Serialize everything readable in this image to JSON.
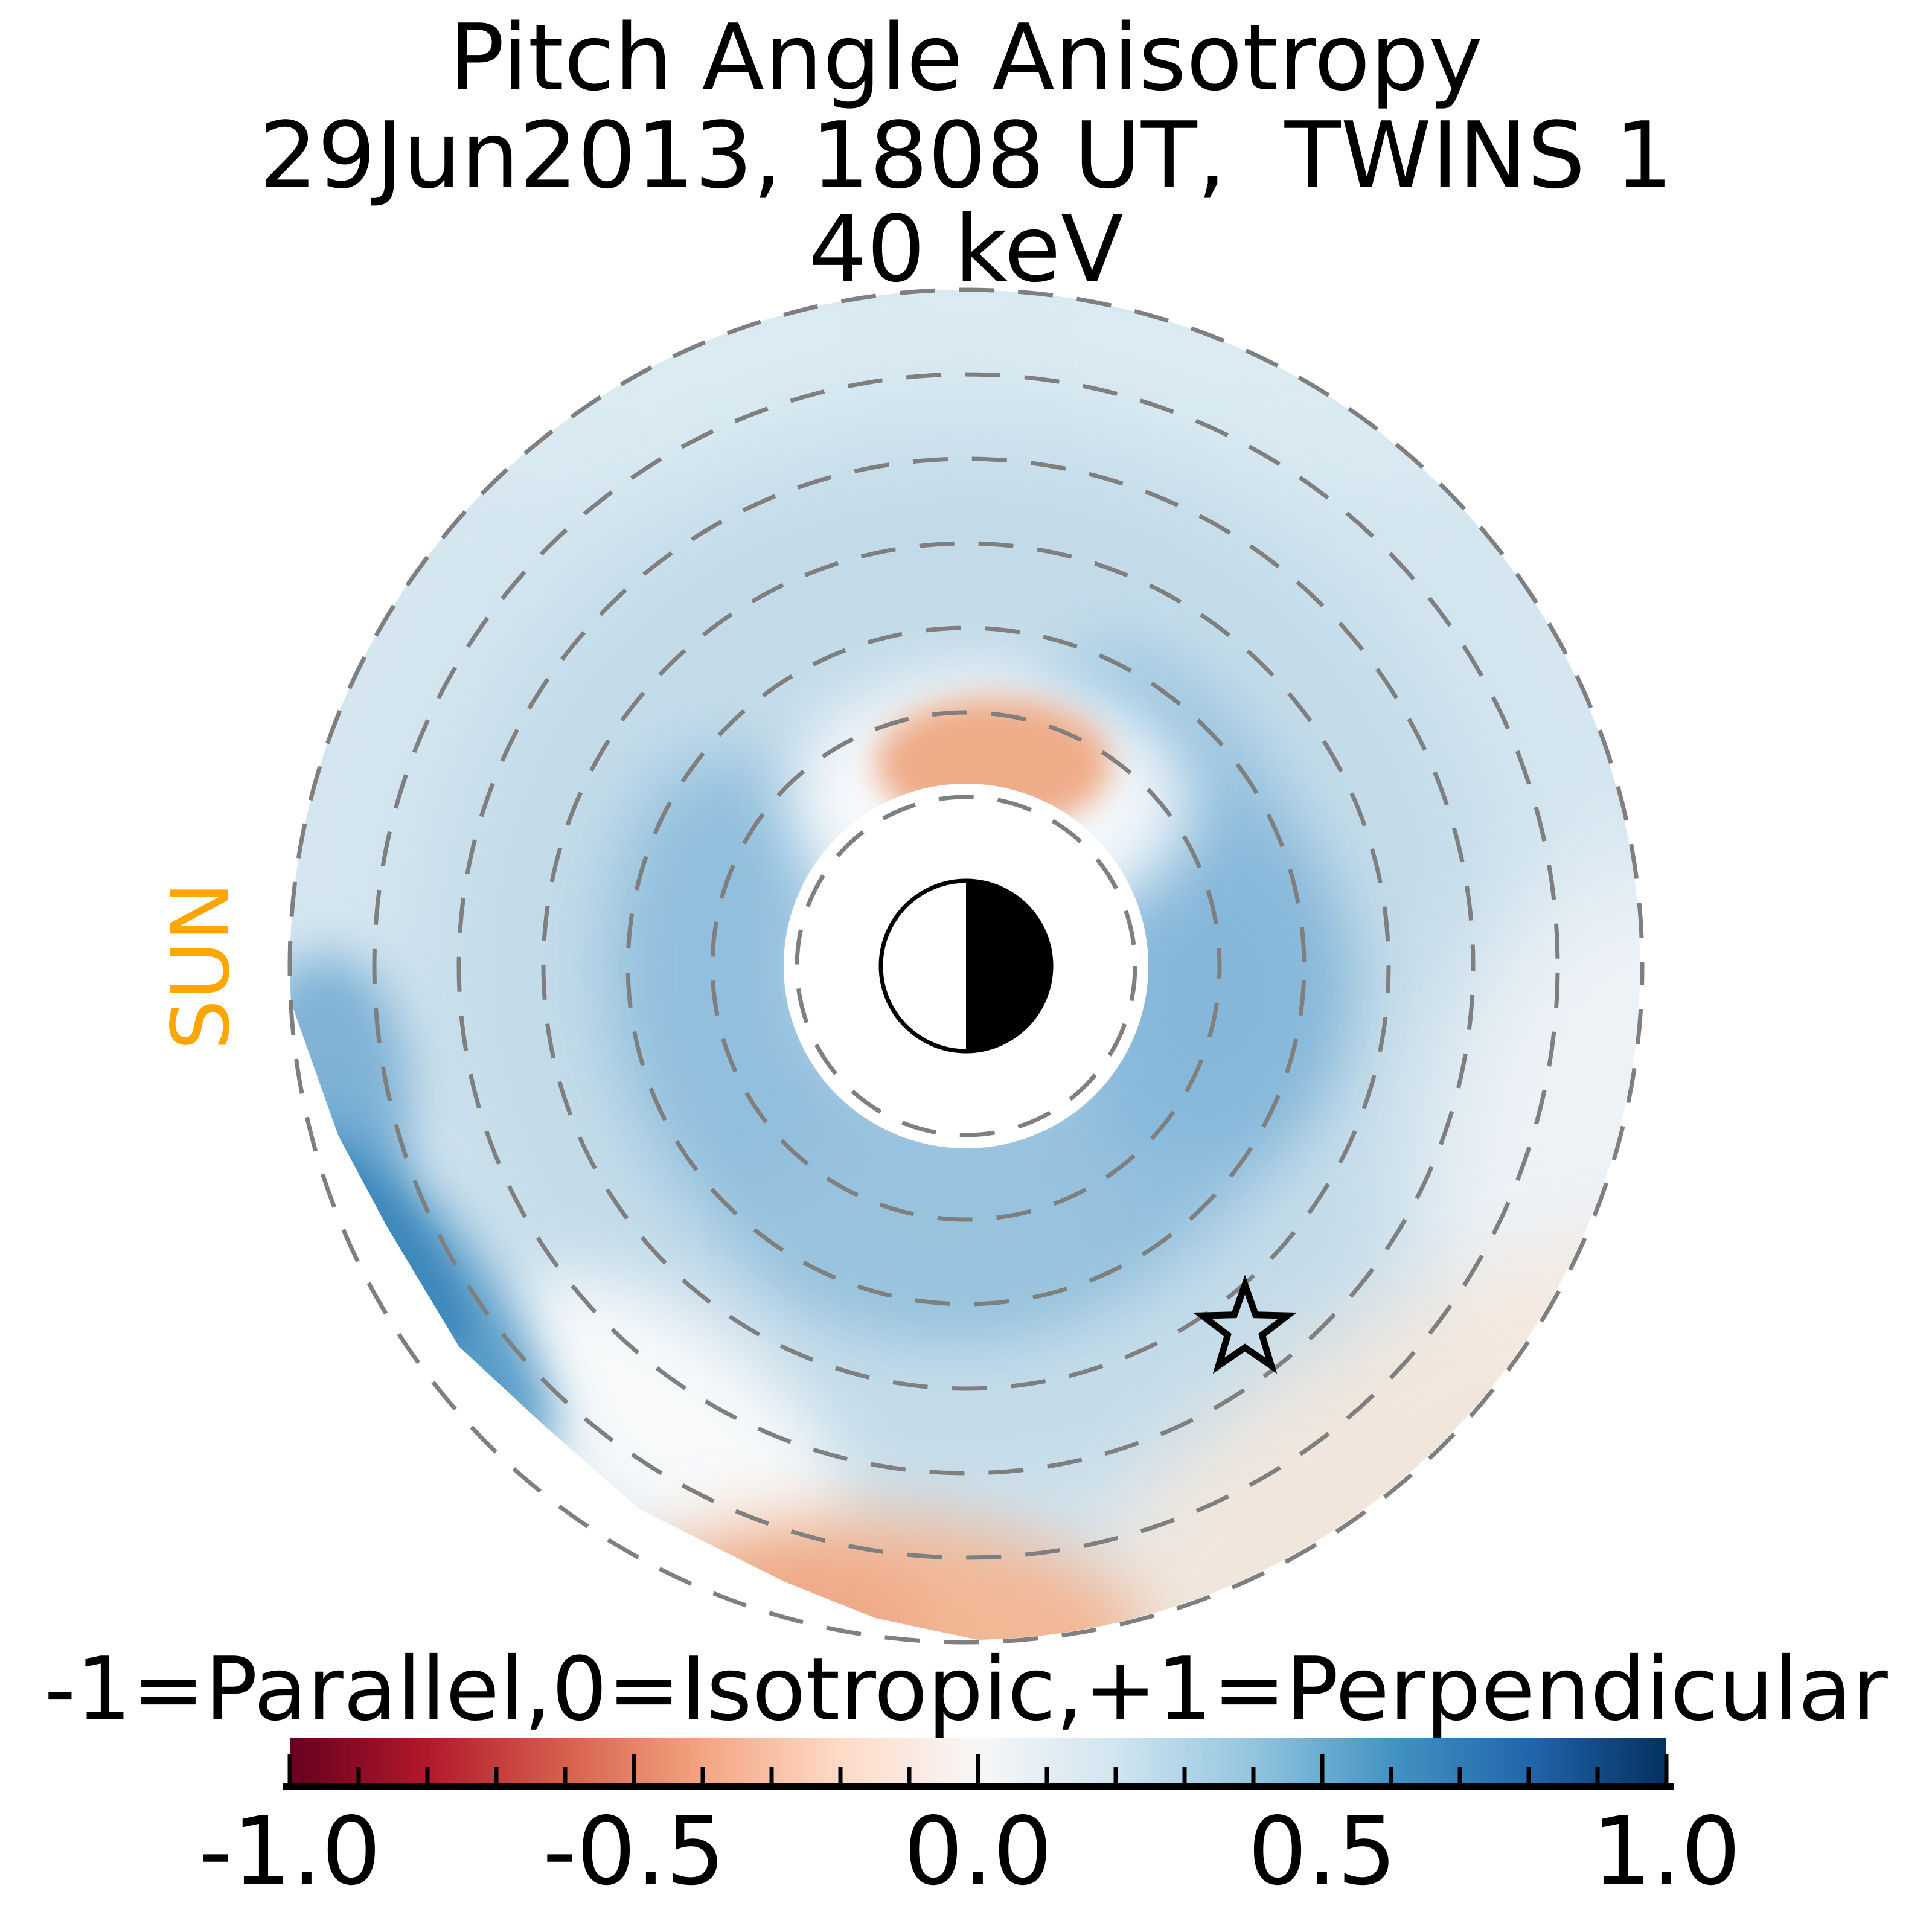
{
  "figure": {
    "title_line1": "Pitch Angle Anisotropy",
    "title_line2": "29Jun2013, 1808 UT,  TWINS 1",
    "title_line3": "40 keV",
    "sun_label": "SUN",
    "sun_color": "#FFA500",
    "colorbar_label": "-1=Parallel,0=Isotropic,+1=Perpendicular"
  },
  "chart_data": {
    "type": "heatmap",
    "projection": "polar-equatorial-ena-map",
    "title": "Pitch Angle Anisotropy",
    "subtitle": "29Jun2013, 1808 UT,  TWINS 1",
    "instrument": "TWINS 1",
    "date": "29Jun2013",
    "time_ut": "1808 UT",
    "energy": "40 keV",
    "value_name": "pitch angle anisotropy",
    "value_range": [
      -1,
      1
    ],
    "legend_note": "-1=Parallel,0=Isotropic,+1=Perpendicular",
    "colormap": "RdBu",
    "colormap_stops": [
      "#67001f",
      "#b2182b",
      "#d6604d",
      "#f4a582",
      "#fddbc7",
      "#f7f7f7",
      "#d1e5f0",
      "#92c5de",
      "#4393c3",
      "#2166ac",
      "#053061"
    ],
    "colorbar_ticks": [
      "-1.0",
      "-0.5",
      "0.0",
      "0.5",
      "1.0"
    ],
    "colorbar_tick_values": [
      -1.0,
      -0.5,
      0.0,
      0.5,
      1.0
    ],
    "minor_tick_step": 0.1,
    "grid_circles_re": [
      2,
      3,
      4,
      5,
      6,
      7,
      8
    ],
    "grid_style": "dashed",
    "inner_mask_re": 2.15,
    "outer_edge_re": 8,
    "earth_radius_re": 1,
    "earth_symbol": "half-white-dayside-left, half-black-nightside-right",
    "sun_direction": "left",
    "star_marker": {
      "x_re": 3.3,
      "y_re": -4.3,
      "style": "open-five-point-star"
    },
    "regions": [
      {
        "name": "broad-weak-perpendicular",
        "location": "most of the imaged ring current region",
        "approx_value": 0.15,
        "approx_color": "#c9deec"
      },
      {
        "name": "inner-perpendicular-enhancement",
        "location": "wrapping dusk-dawn around inner boundary, r ≈ 2–4 Re",
        "approx_value": 0.35,
        "approx_color": "#8cbddc"
      },
      {
        "name": "strong-perpendicular-streak",
        "location": "outer edge of data, lower-left (pre-midnight) sector",
        "approx_value": 0.65,
        "approx_color": "#3d87bb"
      },
      {
        "name": "parallel-patch-bottom",
        "location": "outer edge near midnight sector (bottom)",
        "approx_value": -0.25,
        "approx_color": "#f2b795"
      },
      {
        "name": "parallel-patch-inner-noon",
        "location": "just outside inner boundary toward top",
        "approx_value": -0.2,
        "approx_color": "#efac89"
      },
      {
        "name": "near-isotropic",
        "location": "lower-right outer region around star",
        "approx_value": 0.0,
        "approx_color": "#f5ebe3"
      }
    ]
  }
}
